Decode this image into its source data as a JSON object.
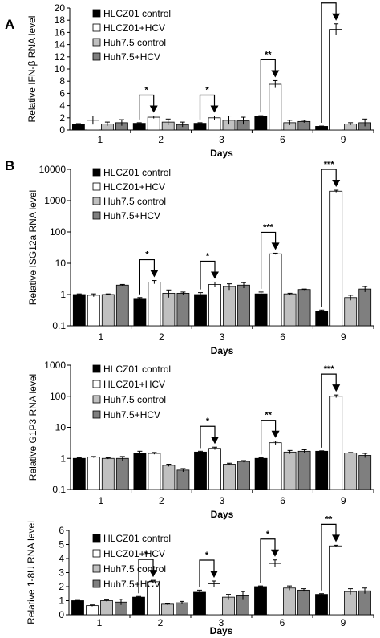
{
  "colors": {
    "HLCZ01 control": "#000000",
    "HLCZ01+HCV": "#ffffff",
    "Huh7.5 control": "#c0c0c0",
    "Huh7.5+HCV": "#7f7f7f"
  },
  "chart_data": [
    {
      "panel": "A",
      "type": "bar",
      "scale": "linear",
      "xlabel": "Days",
      "ylabel": "Relative IFN-β RNA level",
      "ylim": [
        0,
        20
      ],
      "yticks": [
        "0",
        "2",
        "4",
        "6",
        "8",
        "10",
        "12",
        "14",
        "16",
        "18",
        "20"
      ],
      "categories": [
        "1",
        "2",
        "3",
        "6",
        "9"
      ],
      "legend": "top-left",
      "series": [
        {
          "name": "HLCZ01 control",
          "values": [
            1.0,
            1.1,
            1.1,
            2.2,
            0.6
          ],
          "errors": [
            0.05,
            0.1,
            0.1,
            0.15,
            0.05
          ]
        },
        {
          "name": "HLCZ01+HCV",
          "values": [
            1.6,
            2.1,
            2.0,
            7.5,
            16.5
          ],
          "errors": [
            0.7,
            0.2,
            0.3,
            0.6,
            0.9
          ]
        },
        {
          "name": "Huh7.5 control",
          "values": [
            1.0,
            1.3,
            1.6,
            1.2,
            1.0
          ],
          "errors": [
            0.3,
            0.5,
            0.7,
            0.4,
            0.2
          ]
        },
        {
          "name": "Huh7.5+HCV",
          "values": [
            1.2,
            0.9,
            1.5,
            1.4,
            1.2
          ],
          "errors": [
            0.5,
            0.4,
            0.6,
            0.2,
            0.6
          ]
        }
      ],
      "significance": [
        {
          "category": "2",
          "label": "*"
        },
        {
          "category": "3",
          "label": "*"
        },
        {
          "category": "6",
          "label": "**"
        },
        {
          "category": "9",
          "label": "***"
        }
      ]
    },
    {
      "panel": "B",
      "type": "bar",
      "scale": "log",
      "xlabel": "Days",
      "ylabel": "Relative ISG12a RNA level",
      "ylim": [
        0.1,
        10000
      ],
      "yticks": [
        "0.1",
        "1",
        "10",
        "100",
        "1000",
        "10000"
      ],
      "categories": [
        "1",
        "2",
        "3",
        "6",
        "9"
      ],
      "legend": "top-left",
      "series": [
        {
          "name": "HLCZ01 control",
          "values": [
            1.0,
            0.75,
            1.0,
            1.05,
            0.3
          ],
          "errors": [
            0.05,
            0.05,
            0.15,
            0.15,
            0.02
          ]
        },
        {
          "name": "HLCZ01+HCV",
          "values": [
            0.95,
            2.5,
            2.1,
            20,
            2000
          ],
          "errors": [
            0.1,
            0.3,
            0.4,
            1.0,
            150
          ]
        },
        {
          "name": "Huh7.5 control",
          "values": [
            1.0,
            1.1,
            1.8,
            1.05,
            0.8
          ],
          "errors": [
            0.05,
            0.3,
            0.4,
            0.05,
            0.15
          ]
        },
        {
          "name": "Huh7.5+HCV",
          "values": [
            2.0,
            1.1,
            2.0,
            1.45,
            1.5
          ],
          "errors": [
            0.1,
            0.1,
            0.4,
            0.05,
            0.3
          ]
        }
      ],
      "significance": [
        {
          "category": "2",
          "label": "*"
        },
        {
          "category": "3",
          "label": "*"
        },
        {
          "category": "6",
          "label": "***"
        },
        {
          "category": "9",
          "label": "***"
        }
      ]
    },
    {
      "panel": "",
      "type": "bar",
      "scale": "log",
      "xlabel": "Days",
      "ylabel": "Relative G1P3 RNA level",
      "ylim": [
        0.1,
        1000
      ],
      "yticks": [
        "0.1",
        "1",
        "10",
        "100",
        "1000"
      ],
      "categories": [
        "1",
        "2",
        "3",
        "6",
        "9"
      ],
      "legend": "top-left",
      "series": [
        {
          "name": "HLCZ01 control",
          "values": [
            1.0,
            1.45,
            1.6,
            1.0,
            1.7
          ],
          "errors": [
            0.05,
            0.25,
            0.1,
            0.05,
            0.05
          ]
        },
        {
          "name": "HLCZ01+HCV",
          "values": [
            1.1,
            1.45,
            2.1,
            3.2,
            100
          ],
          "errors": [
            0.05,
            0.1,
            0.2,
            0.4,
            10
          ]
        },
        {
          "name": "Huh7.5 control",
          "values": [
            1.0,
            0.6,
            0.65,
            1.6,
            1.5
          ],
          "errors": [
            0.05,
            0.05,
            0.05,
            0.2,
            0.05
          ]
        },
        {
          "name": "Huh7.5+HCV",
          "values": [
            1.0,
            0.42,
            0.8,
            1.7,
            1.25
          ],
          "errors": [
            0.15,
            0.05,
            0.05,
            0.2,
            0.2
          ]
        }
      ],
      "significance": [
        {
          "category": "3",
          "label": "*"
        },
        {
          "category": "6",
          "label": "**"
        },
        {
          "category": "9",
          "label": "***"
        }
      ]
    },
    {
      "panel": "",
      "type": "bar",
      "scale": "linear",
      "xlabel": "Days",
      "ylabel": "Relative 1-8U RNA level",
      "ylim": [
        0,
        6
      ],
      "yticks": [
        "0",
        "1",
        "2",
        "3",
        "4",
        "5",
        "6"
      ],
      "categories": [
        "1",
        "2",
        "3",
        "6",
        "9"
      ],
      "legend": "top-left",
      "series": [
        {
          "name": "HLCZ01 control",
          "values": [
            1.0,
            1.25,
            1.6,
            2.0,
            1.45
          ],
          "errors": [
            0.02,
            0.05,
            0.15,
            0.05,
            0.05
          ]
        },
        {
          "name": "HLCZ01+HCV",
          "values": [
            0.65,
            2.35,
            2.2,
            3.65,
            4.9
          ],
          "errors": [
            0.05,
            0.1,
            0.2,
            0.25,
            0.05
          ]
        },
        {
          "name": "Huh7.5 control",
          "values": [
            1.0,
            0.75,
            1.25,
            1.9,
            1.65
          ],
          "errors": [
            0.05,
            0.05,
            0.2,
            0.15,
            0.2
          ]
        },
        {
          "name": "Huh7.5+HCV",
          "values": [
            0.9,
            0.85,
            1.35,
            1.75,
            1.7
          ],
          "errors": [
            0.2,
            0.1,
            0.3,
            0.1,
            0.2
          ]
        }
      ],
      "significance": [
        {
          "category": "2",
          "label": "*"
        },
        {
          "category": "3",
          "label": "*"
        },
        {
          "category": "6",
          "label": "*"
        },
        {
          "category": "9",
          "label": "**"
        }
      ]
    }
  ]
}
